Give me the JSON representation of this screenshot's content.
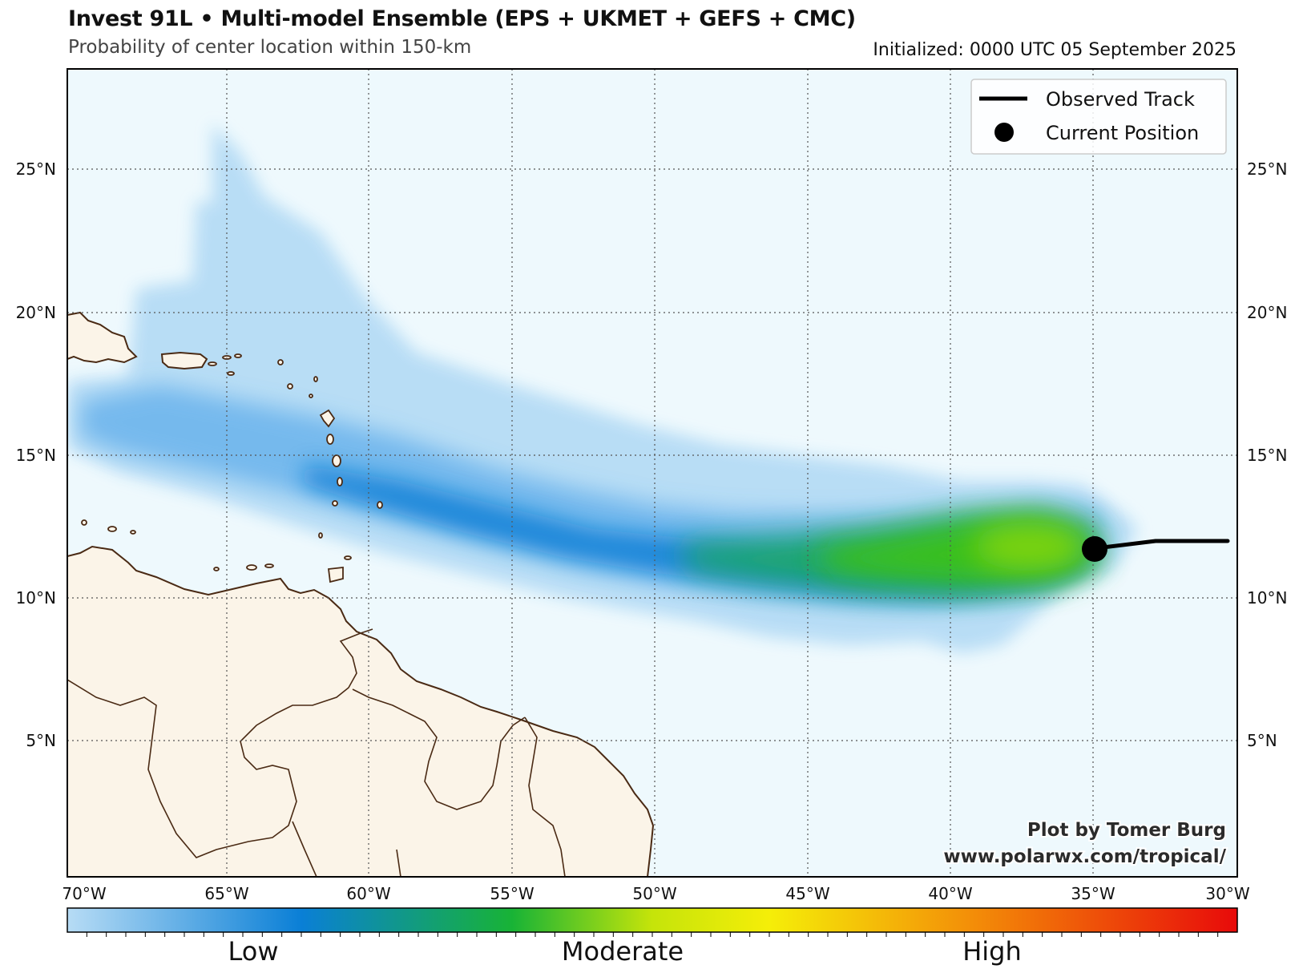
{
  "title": "Invest 91L • Multi-model Ensemble (EPS + UKMET + GEFS + CMC)",
  "subtitle": "Probability of center location within 150-km",
  "initialized": "Initialized: 0000 UTC 05 September 2025",
  "legend": {
    "observed_track": "Observed Track",
    "current_position": "Current Position"
  },
  "credit": {
    "line1": "Plot by Tomer Burg",
    "line2": "www.polarwx.com/tropical/"
  },
  "axes": {
    "lon_labels": [
      "70°W",
      "65°W",
      "60°W",
      "55°W",
      "50°W",
      "45°W",
      "40°W",
      "35°W",
      "30°W"
    ],
    "lat_labels": [
      "25°N",
      "20°N",
      "15°N",
      "10°N",
      "5°N"
    ],
    "lon_range": [
      -70.2,
      -29.8
    ],
    "lat_range": [
      0.3,
      28.5
    ]
  },
  "colorbar": {
    "labels": [
      "Low",
      "Moderate",
      "High"
    ],
    "colors": [
      "#b3dcf6",
      "#0a7fd6",
      "#20b32a",
      "#f3f308",
      "#f39a08",
      "#e80a0a"
    ]
  },
  "track": {
    "observed": [
      [
        -29.9,
        12.0
      ],
      [
        -32.4,
        12.0
      ],
      [
        -34.6,
        11.7
      ]
    ],
    "current_position": [
      -34.6,
      11.7
    ]
  },
  "colors": {
    "ocean": "#eef9fd",
    "land": "#fbf4e8",
    "coast": "#4a2a14",
    "grid": "#555555"
  }
}
